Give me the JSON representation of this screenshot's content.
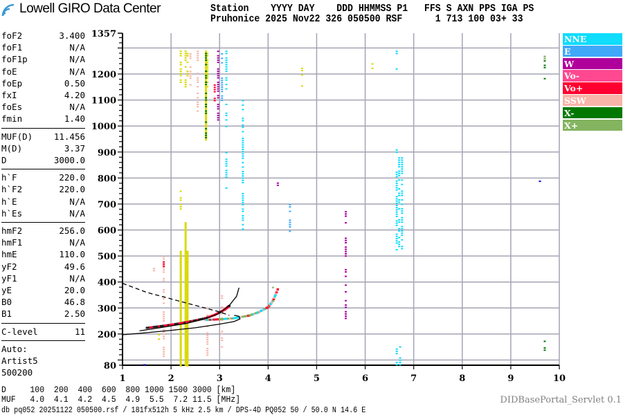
{
  "logo": {
    "text": "Lowell GIRO Data Center"
  },
  "header": {
    "line1": "Station    YYYY DAY    DDD HHMMSS P1   FFS S AXN PPS IGA PS",
    "line2": "Pruhonice 2025 Nov22 326 050500 RSF      1 713 100 03+ 33"
  },
  "params": [
    [
      [
        "foF2",
        "3.400"
      ],
      [
        "foF1",
        "N/A"
      ],
      [
        "foF1p",
        "N/A"
      ],
      [
        "foE",
        "N/A"
      ],
      [
        "foEp",
        "0.50"
      ],
      [
        "fxI",
        "4.20"
      ],
      [
        "foEs",
        "N/A"
      ],
      [
        "fmin",
        "1.40"
      ]
    ],
    [
      [
        "MUF(D)",
        "11.456"
      ],
      [
        "M(D)",
        "3.37"
      ],
      [
        "D",
        "3000.0"
      ]
    ],
    [
      [
        "h`F",
        "220.0"
      ],
      [
        "h`F2",
        "220.0"
      ],
      [
        "h`E",
        "N/A"
      ],
      [
        "h`Es",
        "N/A"
      ]
    ],
    [
      [
        "hmF2",
        "256.0"
      ],
      [
        "hmF1",
        "N/A"
      ],
      [
        "hmE",
        "110.0"
      ],
      [
        "yF2",
        "49.6"
      ],
      [
        "yF1",
        "N/A"
      ],
      [
        "yE",
        "20.0"
      ],
      [
        "B0",
        "46.8"
      ],
      [
        "B1",
        "2.50"
      ]
    ],
    [
      [
        "C-level",
        "11"
      ]
    ]
  ],
  "auto": [
    "Auto:",
    "Artist5",
    "500200"
  ],
  "legend": [
    {
      "label": "NNE",
      "color": "#10dcfc"
    },
    {
      "label": "E",
      "color": "#40a8f8"
    },
    {
      "label": "W",
      "color": "#b0009c"
    },
    {
      "label": "Vo-",
      "color": "#ff4890"
    },
    {
      "label": "Vo+",
      "color": "#ff0030"
    },
    {
      "label": "SSW",
      "color": "#f8b4a8"
    },
    {
      "label": "X-",
      "color": "#007800"
    },
    {
      "label": "X+",
      "color": "#84b460"
    }
  ],
  "dmuf": {
    "d_line": "D     100  200  400  600  800 1000 1500 3000 [km]",
    "muf_line": "MUF   4.0  4.1  4.2  4.5  4.9  5.5  7.2 11.5 [MHz]"
  },
  "footer": "db pq052 20251122 050500.rsf / 181fx512h 5 kHz 2.5 km / DPS-4D PQ052 50 / 50.0 N 14.6 E",
  "version": "DIDBasePortal_Servlet 0.1",
  "chart_data": {
    "type": "scatter",
    "xlabel": "",
    "ylabel": "",
    "xlim": [
      1,
      10
    ],
    "ylim": [
      80,
      1357
    ],
    "xticks": [
      1,
      2,
      3,
      4,
      5,
      6,
      7,
      8,
      9,
      10
    ],
    "yticks": [
      1357,
      1200,
      1100,
      1000,
      900,
      800,
      700,
      600,
      500,
      400,
      300,
      200,
      80
    ],
    "grid": true,
    "legend_position": "right",
    "echo_colors": {
      "NNE": "#10dcfc",
      "E": "#40a8f8",
      "W": "#b0009c",
      "Vo-": "#ff4890",
      "Vo+": "#ff0030",
      "SSW": "#f8b4a8",
      "X-": "#007800",
      "X+": "#84b460",
      "O": "#d8d800",
      "B": "#0000f0"
    },
    "echoes": [
      [
        2.2,
        80,
        520,
        "O"
      ],
      [
        2.3,
        80,
        630,
        "O"
      ],
      [
        2.34,
        80,
        520,
        "O"
      ],
      [
        2.2,
        680,
        760,
        "O"
      ],
      [
        2.2,
        1170,
        1290,
        "O"
      ],
      [
        2.3,
        1140,
        1290,
        "O"
      ],
      [
        2.34,
        1150,
        1290,
        "O"
      ],
      [
        2.75,
        1150,
        1290,
        "O"
      ],
      [
        4.7,
        1150,
        1250,
        "O"
      ],
      [
        6.15,
        1220,
        1250,
        "O"
      ],
      [
        1.75,
        180,
        200,
        "O"
      ],
      [
        2.72,
        950,
        1290,
        "O"
      ],
      [
        2.55,
        1050,
        1290,
        "SSW"
      ],
      [
        2.4,
        1150,
        1280,
        "SSW"
      ],
      [
        1.85,
        100,
        500,
        "SSW"
      ],
      [
        2.75,
        120,
        300,
        "SSW"
      ],
      [
        3.05,
        150,
        400,
        "SSW"
      ],
      [
        1.65,
        440,
        480,
        "SSW"
      ],
      [
        6.65,
        510,
        910,
        "NNE"
      ],
      [
        6.7,
        520,
        880,
        "NNE"
      ],
      [
        6.76,
        530,
        880,
        "NNE"
      ],
      [
        6.65,
        80,
        170,
        "NNE"
      ],
      [
        6.72,
        80,
        170,
        "NNE"
      ],
      [
        3.14,
        1000,
        1290,
        "NNE"
      ],
      [
        3.48,
        600,
        1100,
        "NNE"
      ],
      [
        3.14,
        760,
        900,
        "NNE"
      ],
      [
        6.65,
        1220,
        1290,
        "NNE"
      ],
      [
        5.8,
        1270,
        1285,
        "E"
      ],
      [
        3.05,
        1100,
        1280,
        "E"
      ],
      [
        4.45,
        590,
        700,
        "E"
      ],
      [
        2.97,
        1000,
        1290,
        "W"
      ],
      [
        5.6,
        500,
        690,
        "W"
      ],
      [
        5.6,
        250,
        450,
        "W"
      ],
      [
        4.2,
        760,
        800,
        "W"
      ],
      [
        2.9,
        1100,
        1160,
        "Vo+"
      ],
      [
        3.0,
        540,
        560,
        "Vo+"
      ],
      [
        1.85,
        460,
        480,
        "Vo+"
      ],
      [
        2.72,
        950,
        1290,
        "X-"
      ],
      [
        9.7,
        1180,
        1270,
        "X-"
      ],
      [
        9.7,
        140,
        200,
        "X-"
      ],
      [
        9.7,
        1250,
        1270,
        "X+"
      ],
      [
        4.1,
        370,
        390,
        "X+"
      ],
      [
        9.6,
        780,
        790,
        "B"
      ],
      [
        1.45,
        80,
        84,
        "B"
      ]
    ],
    "traces": {
      "o_trace": [
        [
          1.5,
          225
        ],
        [
          1.8,
          232
        ],
        [
          2.1,
          240
        ],
        [
          2.4,
          250
        ],
        [
          2.7,
          262
        ],
        [
          2.9,
          275
        ],
        [
          3.1,
          295
        ],
        [
          3.2,
          310
        ]
      ],
      "x_trace": [
        [
          2.7,
          255
        ],
        [
          3.0,
          258
        ],
        [
          3.3,
          262
        ],
        [
          3.6,
          272
        ],
        [
          3.8,
          285
        ],
        [
          4.0,
          305
        ],
        [
          4.1,
          330
        ],
        [
          4.2,
          375
        ]
      ],
      "profile_lower": [
        [
          1.0,
          197
        ],
        [
          1.5,
          205
        ],
        [
          2.0,
          214
        ],
        [
          2.5,
          224
        ],
        [
          3.0,
          238
        ],
        [
          3.3,
          248
        ],
        [
          3.42,
          258
        ],
        [
          3.4,
          268
        ],
        [
          3.3,
          272
        ]
      ],
      "profile_upper": [
        [
          1.35,
          212
        ],
        [
          1.8,
          225
        ],
        [
          2.3,
          240
        ],
        [
          2.7,
          258
        ],
        [
          3.0,
          280
        ],
        [
          3.2,
          310
        ],
        [
          3.35,
          345
        ],
        [
          3.4,
          378
        ]
      ],
      "dashed": [
        [
          1.0,
          395
        ],
        [
          1.5,
          360
        ],
        [
          2.0,
          335
        ],
        [
          2.5,
          310
        ],
        [
          3.0,
          285
        ],
        [
          3.2,
          272
        ]
      ]
    }
  }
}
